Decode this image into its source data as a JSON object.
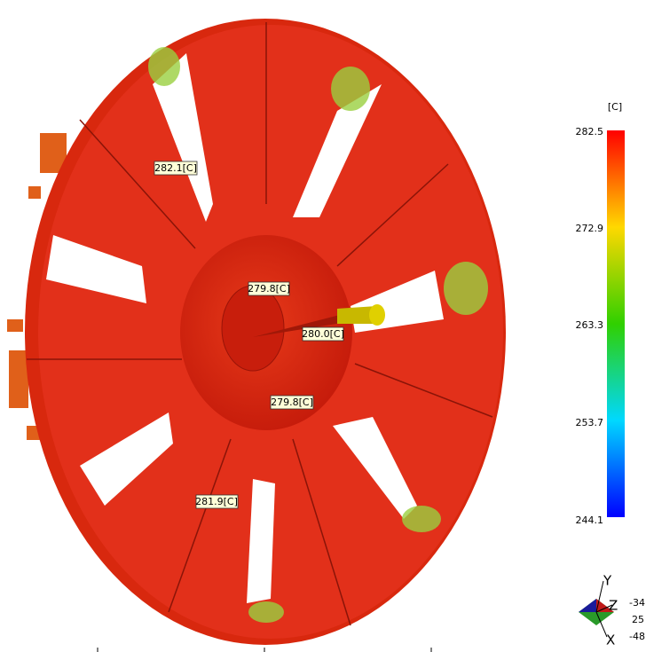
{
  "legend": {
    "unit": "[C]",
    "ticks": [
      "282.5",
      "272.9",
      "263.3",
      "253.7",
      "244.1"
    ]
  },
  "probes": [
    "282.1[C]",
    "279.8[C]",
    "280.0[C]",
    "279.8[C]",
    "281.9[C]"
  ],
  "triad": {
    "axes": [
      "Y",
      "Z",
      "X"
    ],
    "values": [
      "-34",
      "25",
      "-48"
    ]
  }
}
